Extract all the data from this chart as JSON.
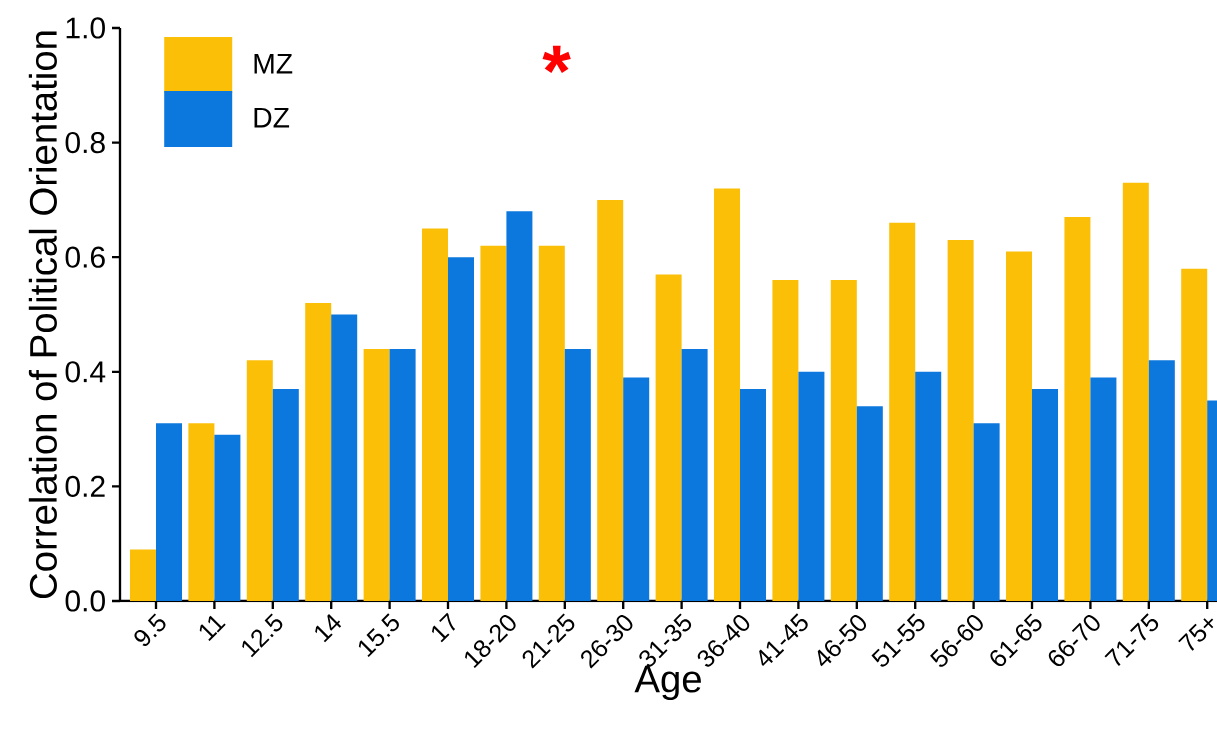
{
  "chart_data": {
    "type": "bar",
    "xlabel": "Age",
    "ylabel": "Correlation of Political Orientation",
    "categories": [
      "9.5",
      "11",
      "12.5",
      "14",
      "15.5",
      "17",
      "18-20",
      "21-25",
      "26-30",
      "31-35",
      "36-40",
      "41-45",
      "46-50",
      "51-55",
      "56-60",
      "61-65",
      "66-70",
      "71-75",
      "75+"
    ],
    "series": [
      {
        "name": "MZ",
        "color": "#fbbf08",
        "values": [
          0.09,
          0.31,
          0.42,
          0.52,
          0.44,
          0.65,
          0.62,
          0.62,
          0.7,
          0.57,
          0.72,
          0.56,
          0.56,
          0.66,
          0.63,
          0.61,
          0.67,
          0.73,
          0.58
        ]
      },
      {
        "name": "DZ",
        "color": "#0c77dd",
        "values": [
          0.31,
          0.29,
          0.37,
          0.5,
          0.44,
          0.6,
          0.68,
          0.44,
          0.39,
          0.44,
          0.37,
          0.4,
          0.34,
          0.4,
          0.31,
          0.37,
          0.39,
          0.42,
          0.35
        ]
      }
    ],
    "ylim": [
      0,
      1
    ],
    "yticks": [
      {
        "value": 0,
        "label": "0.0"
      },
      {
        "value": 0.2,
        "label": "0.2"
      },
      {
        "value": 0.4,
        "label": "0.4"
      },
      {
        "value": 0.6,
        "label": "0.6"
      },
      {
        "value": 0.8,
        "label": "0.8"
      },
      {
        "value": 1,
        "label": "1.0"
      }
    ],
    "annotations": [
      "*"
    ],
    "legend": "top left",
    "grid": false
  }
}
